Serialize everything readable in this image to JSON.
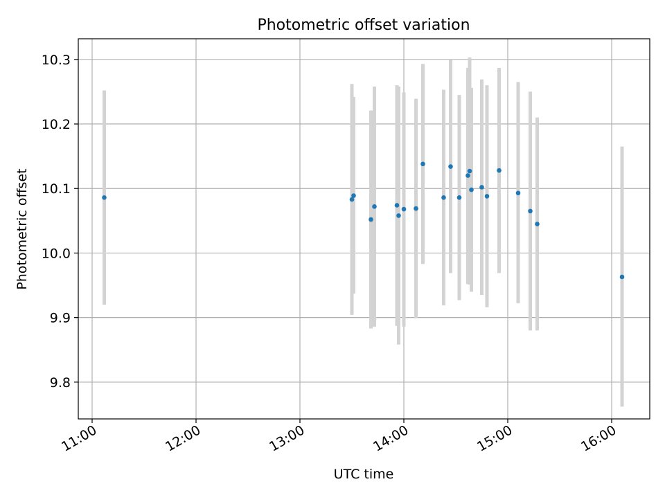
{
  "chart_data": {
    "type": "scatter",
    "title": "Photometric offset variation",
    "xlabel": "UTC time",
    "ylabel": "Photometric offset",
    "x_axis_kind": "time",
    "xlim": [
      "10:52",
      "16:22"
    ],
    "ylim": [
      9.743,
      10.332
    ],
    "x_ticks": [
      "11:00",
      "12:00",
      "13:00",
      "14:00",
      "15:00",
      "16:00"
    ],
    "y_ticks": [
      "9.8",
      "9.9",
      "10.0",
      "10.1",
      "10.2",
      "10.3"
    ],
    "grid": true,
    "legend": "none",
    "colors": {
      "marker": "#1f77b4",
      "errorbar": "#d3d3d3",
      "grid": "#b0b0b0"
    },
    "series": [
      {
        "points": [
          {
            "x": "11:07",
            "y": 10.086,
            "low": 9.92,
            "high": 10.252
          },
          {
            "x": "13:30",
            "y": 10.083,
            "low": 9.904,
            "high": 10.262
          },
          {
            "x": "13:31",
            "y": 10.089,
            "low": 9.937,
            "high": 10.242
          },
          {
            "x": "13:41",
            "y": 10.052,
            "low": 9.883,
            "high": 10.221
          },
          {
            "x": "13:43",
            "y": 10.072,
            "low": 9.886,
            "high": 10.258
          },
          {
            "x": "13:56",
            "y": 10.074,
            "low": 9.887,
            "high": 10.26
          },
          {
            "x": "13:57",
            "y": 10.058,
            "low": 9.858,
            "high": 10.258
          },
          {
            "x": "14:00",
            "y": 10.068,
            "low": 9.886,
            "high": 10.249
          },
          {
            "x": "14:07",
            "y": 10.069,
            "low": 9.899,
            "high": 10.239
          },
          {
            "x": "14:11",
            "y": 10.138,
            "low": 9.983,
            "high": 10.293
          },
          {
            "x": "14:23",
            "y": 10.086,
            "low": 9.919,
            "high": 10.253
          },
          {
            "x": "14:27",
            "y": 10.134,
            "low": 9.969,
            "high": 10.3
          },
          {
            "x": "14:32",
            "y": 10.086,
            "low": 9.927,
            "high": 10.245
          },
          {
            "x": "14:37",
            "y": 10.12,
            "low": 9.952,
            "high": 10.287
          },
          {
            "x": "14:38",
            "y": 10.127,
            "low": 9.951,
            "high": 10.303
          },
          {
            "x": "14:39",
            "y": 10.098,
            "low": 9.94,
            "high": 10.256
          },
          {
            "x": "14:45",
            "y": 10.102,
            "low": 9.935,
            "high": 10.269
          },
          {
            "x": "14:48",
            "y": 10.088,
            "low": 9.916,
            "high": 10.26
          },
          {
            "x": "14:55",
            "y": 10.128,
            "low": 9.969,
            "high": 10.287
          },
          {
            "x": "15:06",
            "y": 10.093,
            "low": 9.922,
            "high": 10.265
          },
          {
            "x": "15:13",
            "y": 10.065,
            "low": 9.88,
            "high": 10.25
          },
          {
            "x": "15:17",
            "y": 10.045,
            "low": 9.88,
            "high": 10.21
          },
          {
            "x": "16:06",
            "y": 9.963,
            "low": 9.762,
            "high": 10.165
          }
        ]
      }
    ]
  }
}
